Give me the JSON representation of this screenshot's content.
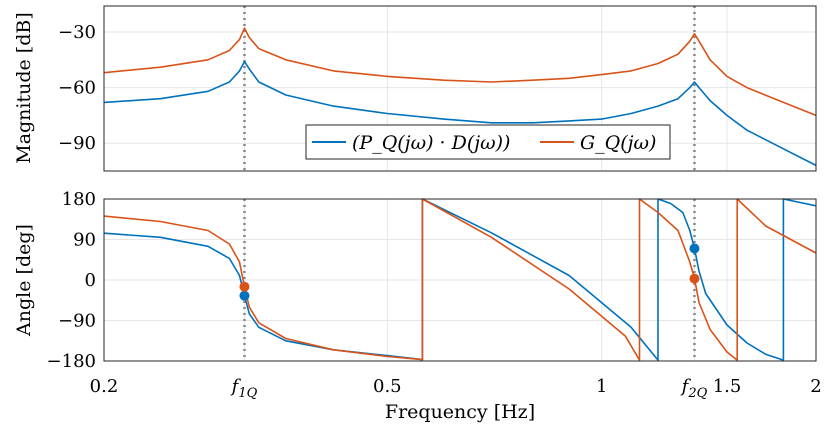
{
  "chart_data": {
    "type": "line",
    "x_scale": "log",
    "xlim": [
      0.2,
      2.0
    ],
    "xlabel": "Frequency [Hz]",
    "x_ticks": [
      {
        "value": 0.2,
        "label": "0.2"
      },
      {
        "value": 0.315,
        "label": "f1Q"
      },
      {
        "value": 0.5,
        "label": "0.5"
      },
      {
        "value": 1.0,
        "label": "1"
      },
      {
        "value": 1.35,
        "label": "f2Q"
      },
      {
        "value": 1.5,
        "label": "1.5"
      },
      {
        "value": 2.0,
        "label": "2"
      }
    ],
    "markers": {
      "f1Q": 0.315,
      "f2Q": 1.35
    },
    "colors": {
      "series1": "#0072BD",
      "series2": "#D95319",
      "marker_lines": "#888888"
    },
    "grid": true,
    "subplots": [
      {
        "id": "magnitude",
        "ylabel": "Magnitude [dB]",
        "ylim": [
          -105,
          -16
        ],
        "y_ticks": [
          -30,
          -60,
          -90
        ],
        "legend": {
          "placement": "lower-center",
          "entries": [
            "(P_Q(jω) · D(jω))",
            "G_Q(jω)"
          ]
        },
        "series": [
          {
            "name": "(P_Q(jω) · D(jω))",
            "color": "#0072BD",
            "x": [
              0.2,
              0.24,
              0.28,
              0.3,
              0.31,
              0.315,
              0.32,
              0.33,
              0.36,
              0.42,
              0.5,
              0.6,
              0.7,
              0.8,
              0.9,
              1.0,
              1.1,
              1.2,
              1.28,
              1.33,
              1.35,
              1.37,
              1.42,
              1.5,
              1.6,
              1.8,
              2.0
            ],
            "y": [
              -68,
              -66,
              -62,
              -57,
              -51,
              -46,
              -50,
              -57,
              -64,
              -70,
              -74,
              -77,
              -79,
              -79,
              -78,
              -77,
              -74,
              -70,
              -66,
              -60,
              -57,
              -60,
              -67,
              -75,
              -83,
              -93,
              -102
            ]
          },
          {
            "name": "G_Q(jω)",
            "color": "#D95319",
            "x": [
              0.2,
              0.24,
              0.28,
              0.3,
              0.31,
              0.315,
              0.32,
              0.33,
              0.36,
              0.42,
              0.5,
              0.6,
              0.7,
              0.8,
              0.9,
              1.0,
              1.1,
              1.2,
              1.28,
              1.33,
              1.35,
              1.37,
              1.42,
              1.5,
              1.6,
              1.8,
              2.0
            ],
            "y": [
              -52,
              -49,
              -45,
              -40,
              -34,
              -28,
              -33,
              -39,
              -45,
              -51,
              -54,
              -56,
              -57,
              -56,
              -55,
              -53,
              -51,
              -47,
              -42,
              -35,
              -31,
              -35,
              -45,
              -54,
              -60,
              -68,
              -75
            ]
          }
        ]
      },
      {
        "id": "phase",
        "ylabel": "Angle [deg]",
        "ylim": [
          -180,
          180
        ],
        "y_ticks": [
          180,
          90,
          0,
          -90,
          -180
        ],
        "series": [
          {
            "name": "(P_Q(jω) · D(jω))",
            "color": "#0072BD",
            "x": [
              0.2,
              0.24,
              0.28,
              0.3,
              0.31,
              0.315,
              0.32,
              0.33,
              0.36,
              0.42,
              0.5,
              0.56,
              0.56,
              0.7,
              0.9,
              1.1,
              1.2,
              1.2,
              1.25,
              1.3,
              1.33,
              1.35,
              1.37,
              1.4,
              1.5,
              1.6,
              1.7,
              1.8,
              1.8,
              2.0
            ],
            "y": [
              104,
              95,
              75,
              48,
              10,
              -35,
              -75,
              -105,
              -135,
              -155,
              -168,
              -177,
              180,
              105,
              10,
              -105,
              -178,
              180,
              170,
              150,
              110,
              70,
              20,
              -30,
              -100,
              -140,
              -165,
              -178,
              180,
              165
            ]
          },
          {
            "name": "G_Q(jω)",
            "color": "#D95319",
            "x": [
              0.2,
              0.24,
              0.28,
              0.3,
              0.31,
              0.315,
              0.32,
              0.33,
              0.36,
              0.42,
              0.5,
              0.56,
              0.56,
              0.7,
              0.9,
              1.08,
              1.13,
              1.13,
              1.2,
              1.28,
              1.33,
              1.35,
              1.37,
              1.42,
              1.5,
              1.55,
              1.55,
              1.7,
              2.0
            ],
            "y": [
              142,
              130,
              110,
              80,
              40,
              -15,
              -60,
              -95,
              -130,
              -155,
              -170,
              -177,
              180,
              95,
              -20,
              -125,
              -178,
              180,
              150,
              110,
              40,
              3,
              -50,
              -110,
              -160,
              -178,
              180,
              120,
              60
            ]
          }
        ],
        "points": [
          {
            "x": 0.315,
            "y": -35,
            "color": "#0072BD"
          },
          {
            "x": 0.315,
            "y": -15,
            "color": "#D95319"
          },
          {
            "x": 1.35,
            "y": 70,
            "color": "#0072BD"
          },
          {
            "x": 1.35,
            "y": 3,
            "color": "#D95319"
          }
        ]
      }
    ]
  }
}
